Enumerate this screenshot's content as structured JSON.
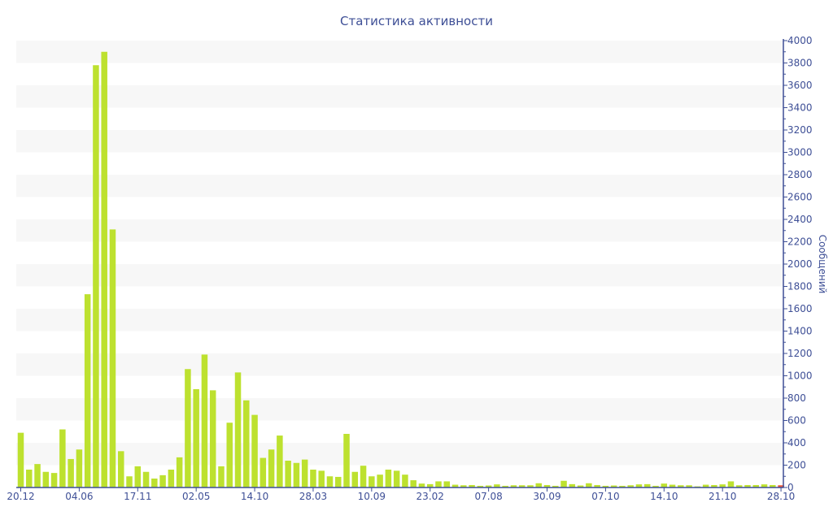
{
  "chart_data": {
    "type": "bar",
    "title": "Статистика активности",
    "ylabel": "Сообщений",
    "xlabel": "",
    "ylim": [
      0,
      4000
    ],
    "yticks": [
      0,
      200,
      400,
      600,
      800,
      1000,
      1200,
      1400,
      1600,
      1800,
      2000,
      2200,
      2400,
      2600,
      2800,
      3000,
      3200,
      3400,
      3600,
      3800,
      4000
    ],
    "y_axis_side": "right",
    "grid": "alternating horizontal bands",
    "xticks": [
      {
        "bar": 0,
        "label": "20.12"
      },
      {
        "bar": 7,
        "label": "04.06"
      },
      {
        "bar": 14,
        "label": "17.11"
      },
      {
        "bar": 21,
        "label": "02.05"
      },
      {
        "bar": 28,
        "label": "14.10"
      },
      {
        "bar": 35,
        "label": "28.03"
      },
      {
        "bar": 42,
        "label": "10.09"
      },
      {
        "bar": 49,
        "label": "23.02"
      },
      {
        "bar": 56,
        "label": "07.08"
      },
      {
        "bar": 63,
        "label": "30.09"
      },
      {
        "bar": 70,
        "label": "07.10"
      },
      {
        "bar": 77,
        "label": "14.10"
      },
      {
        "bar": 84,
        "label": "21.10"
      },
      {
        "bar": 91,
        "label": "28.10"
      }
    ],
    "values": [
      490,
      160,
      210,
      140,
      130,
      520,
      255,
      340,
      1730,
      3780,
      3900,
      2310,
      325,
      100,
      190,
      140,
      80,
      110,
      160,
      270,
      1060,
      880,
      1190,
      870,
      190,
      580,
      1030,
      780,
      650,
      265,
      340,
      465,
      240,
      220,
      250,
      160,
      150,
      100,
      95,
      480,
      140,
      195,
      100,
      115,
      160,
      150,
      115,
      65,
      35,
      30,
      55,
      55,
      25,
      20,
      22,
      15,
      18,
      28,
      15,
      20,
      20,
      20,
      38,
      22,
      15,
      60,
      30,
      18,
      38,
      22,
      15,
      18,
      15,
      20,
      28,
      30,
      15,
      35,
      25,
      20,
      20,
      10,
      25,
      22,
      28,
      55,
      20,
      22,
      22,
      28,
      22,
      20
    ],
    "colors": {
      "bar": "#bde12f",
      "current_bar": "#e8573a",
      "axis": "#3e4f96",
      "band": "#f7f7f7"
    }
  }
}
